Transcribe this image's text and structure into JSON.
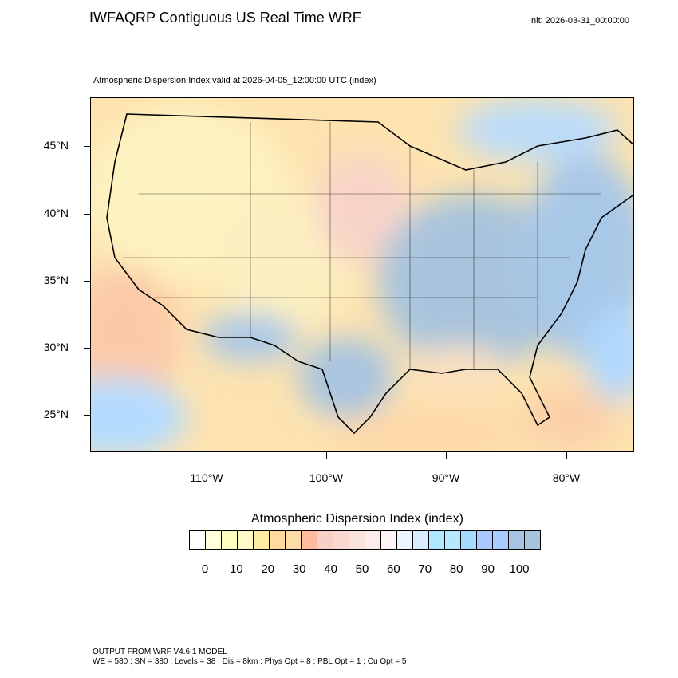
{
  "header": {
    "title": "IWFAQRP Contiguous US Real Time WRF",
    "init": "Init: 2026-03-31_00:00:00",
    "subtitle": "Atmospheric Dispersion Index valid at 2026-04-05_12:00:00 UTC   (index)"
  },
  "map": {
    "lat_labels": [
      "45°N",
      "40°N",
      "35°N",
      "30°N",
      "25°N"
    ],
    "lon_labels": [
      "110°W",
      "100°W",
      "90°W",
      "80°W"
    ],
    "field": "Atmospheric Dispersion Index"
  },
  "colorbar": {
    "title": "Atmospheric Dispersion Index  (index)",
    "labels": [
      "0",
      "10",
      "20",
      "30",
      "40",
      "50",
      "60",
      "70",
      "80",
      "90",
      "100"
    ],
    "colors": [
      "#ffffff",
      "#ffffdc",
      "#ffffc0",
      "#fdfbc8",
      "#feeca0",
      "#fedaa0",
      "#fedca6",
      "#ffbba0",
      "#f8d0c8",
      "#f8d8d0",
      "#f9e4da",
      "#fdecec",
      "#fff5f5",
      "#eef4ff",
      "#dcecff",
      "#b0e8ff",
      "#b4e8ff",
      "#a4dcff",
      "#a8c8ff",
      "#a8ccff",
      "#a8c4e4",
      "#a8c4dc"
    ]
  },
  "footer": {
    "line1": "OUTPUT FROM WRF V4.6.1 MODEL",
    "line2": "WE = 580 ; SN = 380 ; Levels = 38 ; Dis = 8km ; Phys Opt = 8 ; PBL Opt = 1 ; Cu Opt = 5"
  }
}
